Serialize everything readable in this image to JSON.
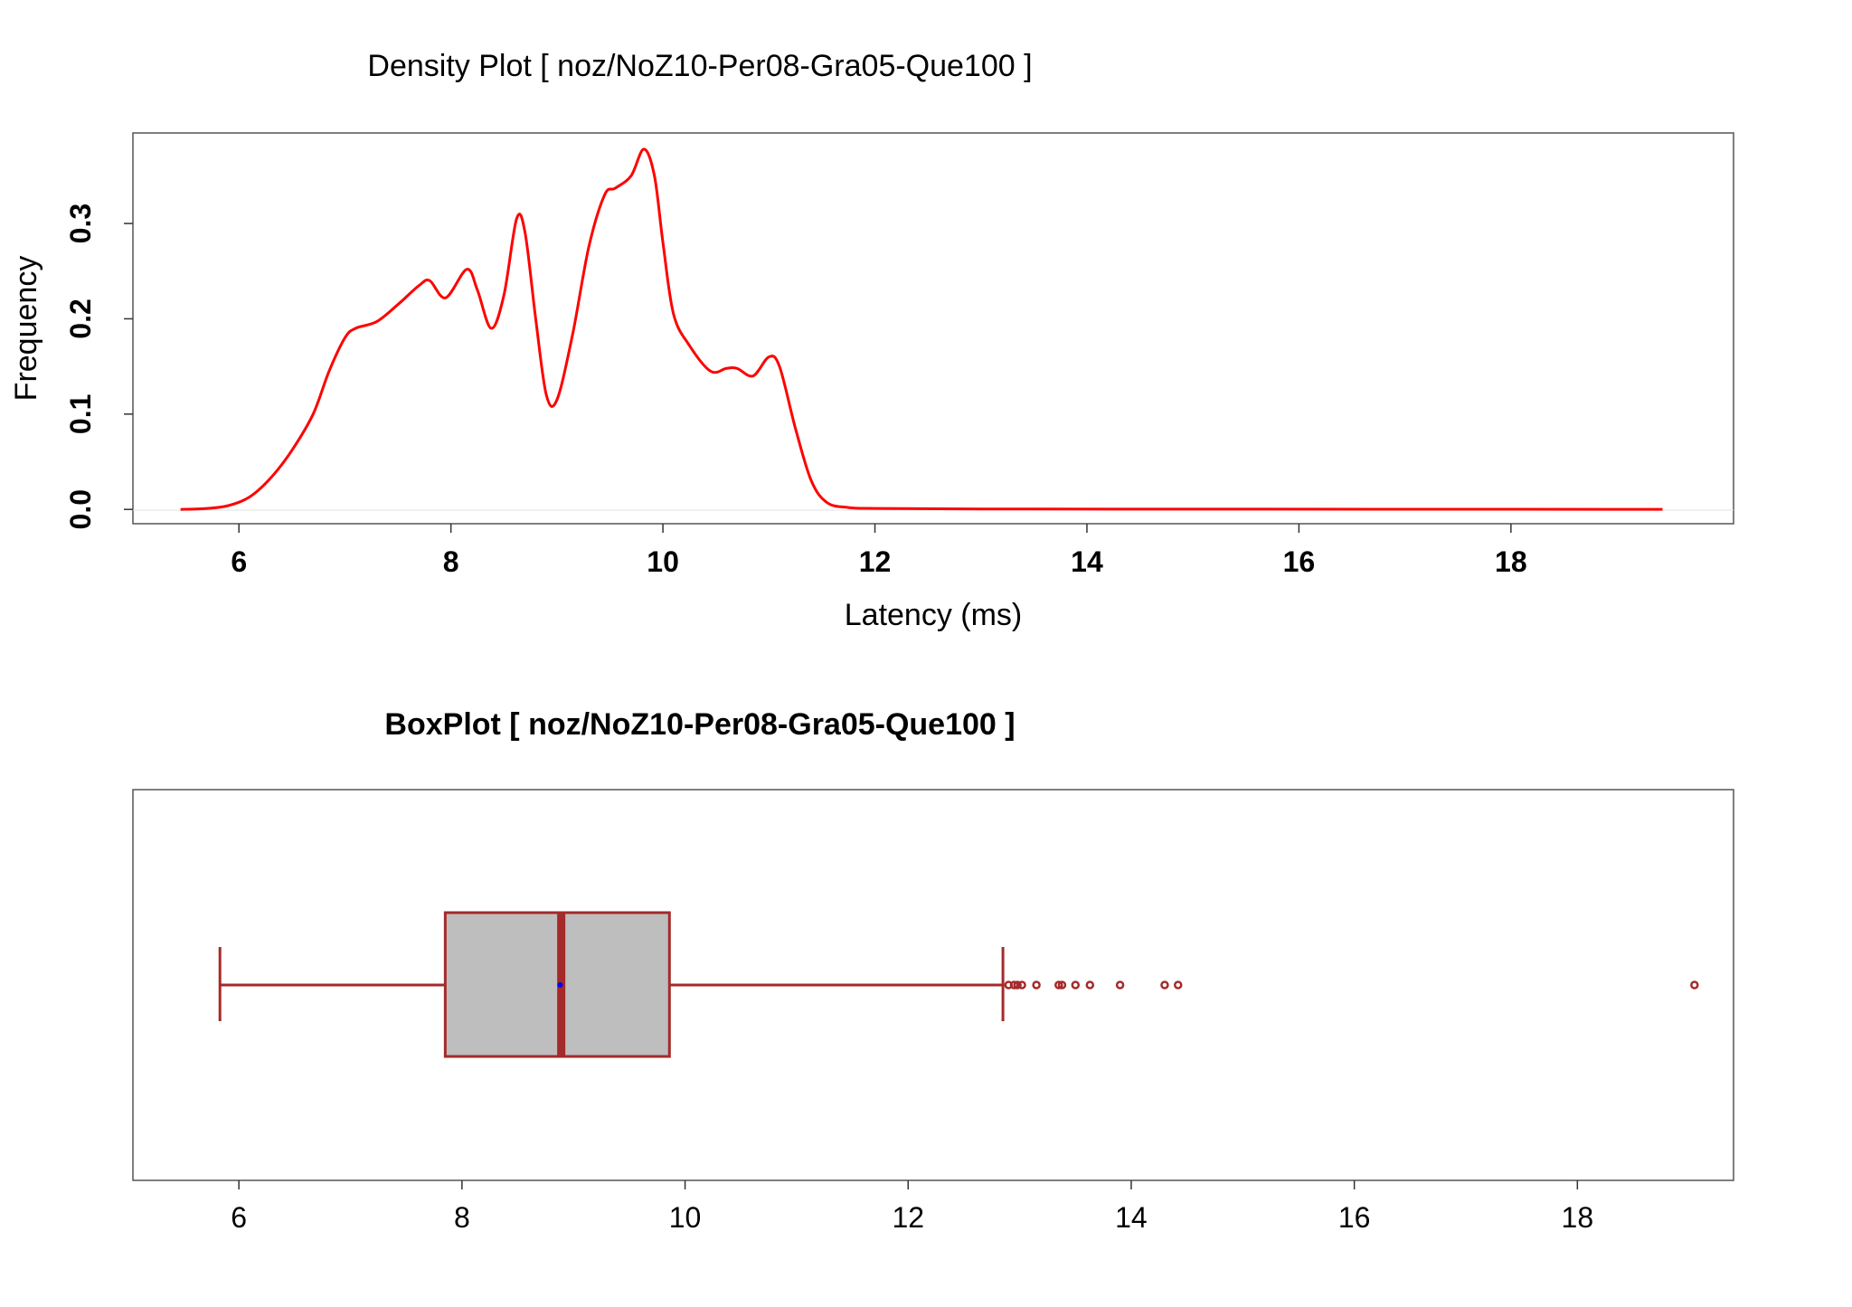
{
  "chart_data": [
    {
      "type": "line",
      "title": "Density Plot [ noz/NoZ10-Per08-Gra05-Que100 ]",
      "xlabel": "Latency (ms)",
      "ylabel": "Frequency",
      "xlim": [
        5.0,
        20.1
      ],
      "ylim": [
        -0.015,
        0.395
      ],
      "xticks": [
        "6",
        "8",
        "10",
        "12",
        "14",
        "16",
        "18"
      ],
      "yticks": [
        "0.0",
        "0.1",
        "0.2",
        "0.3"
      ],
      "line_color": "#ff0000",
      "series": [
        {
          "x": [
            5.45,
            5.7,
            5.9,
            6.1,
            6.3,
            6.5,
            6.7,
            6.85,
            7.0,
            7.1,
            7.3,
            7.5,
            7.7,
            7.8,
            7.95,
            8.15,
            8.25,
            8.38,
            8.5,
            8.62,
            8.7,
            8.8,
            8.9,
            9.0,
            9.15,
            9.3,
            9.45,
            9.55,
            9.7,
            9.82,
            9.92,
            10.0,
            10.1,
            10.25,
            10.45,
            10.6,
            10.7,
            10.85,
            11.0,
            11.1,
            11.25,
            11.4,
            11.55,
            11.75,
            12.0,
            13.0,
            15.0,
            17.0,
            19.43
          ],
          "y": [
            0.0,
            0.001,
            0.004,
            0.013,
            0.033,
            0.062,
            0.1,
            0.145,
            0.18,
            0.19,
            0.197,
            0.215,
            0.235,
            0.24,
            0.222,
            0.252,
            0.23,
            0.19,
            0.225,
            0.305,
            0.29,
            0.2,
            0.12,
            0.115,
            0.185,
            0.275,
            0.33,
            0.337,
            0.35,
            0.378,
            0.35,
            0.28,
            0.205,
            0.172,
            0.145,
            0.148,
            0.148,
            0.14,
            0.16,
            0.15,
            0.085,
            0.03,
            0.007,
            0.002,
            0.001,
            0.0005,
            0.0003,
            0.0002,
            0.0001
          ]
        }
      ]
    },
    {
      "type": "box",
      "title": "BoxPlot [ noz/NoZ10-Per08-Gra05-Que100 ]",
      "xlim": [
        5.05,
        19.4
      ],
      "xticks": [
        "6",
        "8",
        "10",
        "12",
        "14",
        "16",
        "18"
      ],
      "box_fill": "#bebebe",
      "box_border": "#a52a2a",
      "mean_color": "#0000ff",
      "whisker_low": 5.83,
      "q1": 7.85,
      "median": 8.89,
      "mean": 8.88,
      "q3": 9.86,
      "whisker_high": 12.85,
      "outliers": [
        12.9,
        12.95,
        12.98,
        13.02,
        13.15,
        13.35,
        13.38,
        13.5,
        13.63,
        13.9,
        14.3,
        14.42,
        19.05
      ]
    }
  ]
}
